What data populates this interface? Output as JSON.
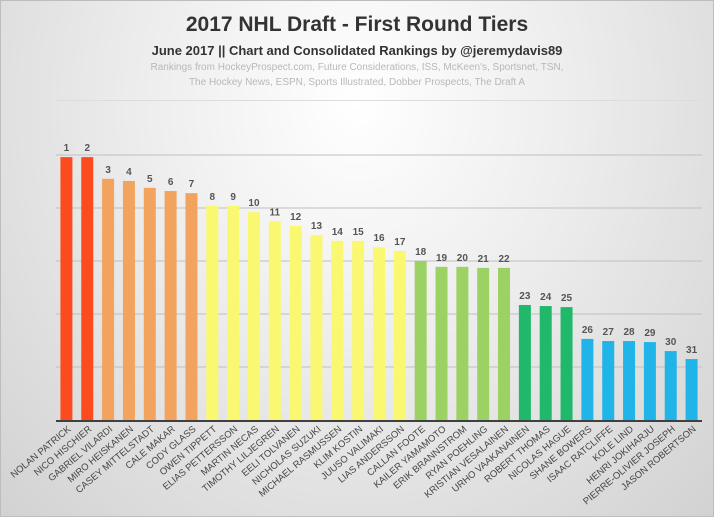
{
  "chart_data": {
    "type": "bar",
    "title": "2017 NHL Draft - First Round Tiers",
    "subtitle": "June 2017 || Chart and Consolidated Rankings by @jeremydavis89",
    "sources_line1": "Rankings from HockeyProspect.com, Future Considerations, ISS, McKeen's, Sportsnet, TSN,",
    "sources_line2": "The Hockey News, ESPN, Sports Illustrated, Dobber Prospects, The Draft A",
    "xlabel": "",
    "ylabel": "",
    "ylim": [
      0,
      5
    ],
    "grid": true,
    "categories": [
      "NOLAN PATRICK",
      "NICO HISCHIER",
      "GABRIEL VILARDI",
      "MIRO HEISKANEN",
      "CASEY MITTELSTADT",
      "CALE MAKAR",
      "CODY GLASS",
      "OWEN TIPPETT",
      "ELIAS PETTERSSON",
      "MARTIN NECAS",
      "TIMOTHY LILJEGREN",
      "EELI TOLVANEN",
      "NICHOLAS SUZUKI",
      "MICHAEL RASMUSSEN",
      "KLIM KOSTIN",
      "JUUSO VALIMAKI",
      "LIAS ANDERSSON",
      "CALLAN FOOTE",
      "KAILER YAMAMOTO",
      "ERIK BRANNSTROM",
      "RYAN POEHLING",
      "KRISTIAN VESALAINEN",
      "URHO VAAKANAINEN",
      "ROBERT THOMAS",
      "NICOLAS HAGUE",
      "SHANE BOWERS",
      "ISAAC RATCLIFFE",
      "KOLE LIND",
      "HENRI JOKIHARJU",
      "PIERRE-OLIVIER JOSEPH",
      "JASON ROBERTSON"
    ],
    "labels": [
      "1",
      "2",
      "3",
      "4",
      "5",
      "6",
      "7",
      "8",
      "9",
      "10",
      "11",
      "12",
      "13",
      "14",
      "15",
      "16",
      "17",
      "18",
      "19",
      "20",
      "21",
      "22",
      "23",
      "24",
      "25",
      "26",
      "27",
      "28",
      "29",
      "30",
      "31"
    ],
    "values": [
      4.96,
      4.96,
      4.55,
      4.51,
      4.38,
      4.32,
      4.28,
      4.04,
      4.04,
      3.92,
      3.75,
      3.66,
      3.49,
      3.38,
      3.38,
      3.26,
      3.19,
      3.0,
      2.89,
      2.89,
      2.87,
      2.87,
      2.17,
      2.15,
      2.13,
      1.53,
      1.49,
      1.49,
      1.47,
      1.3,
      1.15
    ],
    "tiers": [
      1,
      1,
      2,
      2,
      2,
      2,
      2,
      3,
      3,
      3,
      3,
      3,
      3,
      3,
      3,
      3,
      3,
      4,
      4,
      4,
      4,
      4,
      5,
      5,
      5,
      6,
      6,
      6,
      6,
      6,
      6
    ],
    "tier_colors": {
      "1": "#fc4c1f",
      "2": "#f2a35e",
      "3": "#faf871",
      "4": "#9cd263",
      "5": "#20b86a",
      "6": "#20b4e8"
    }
  }
}
